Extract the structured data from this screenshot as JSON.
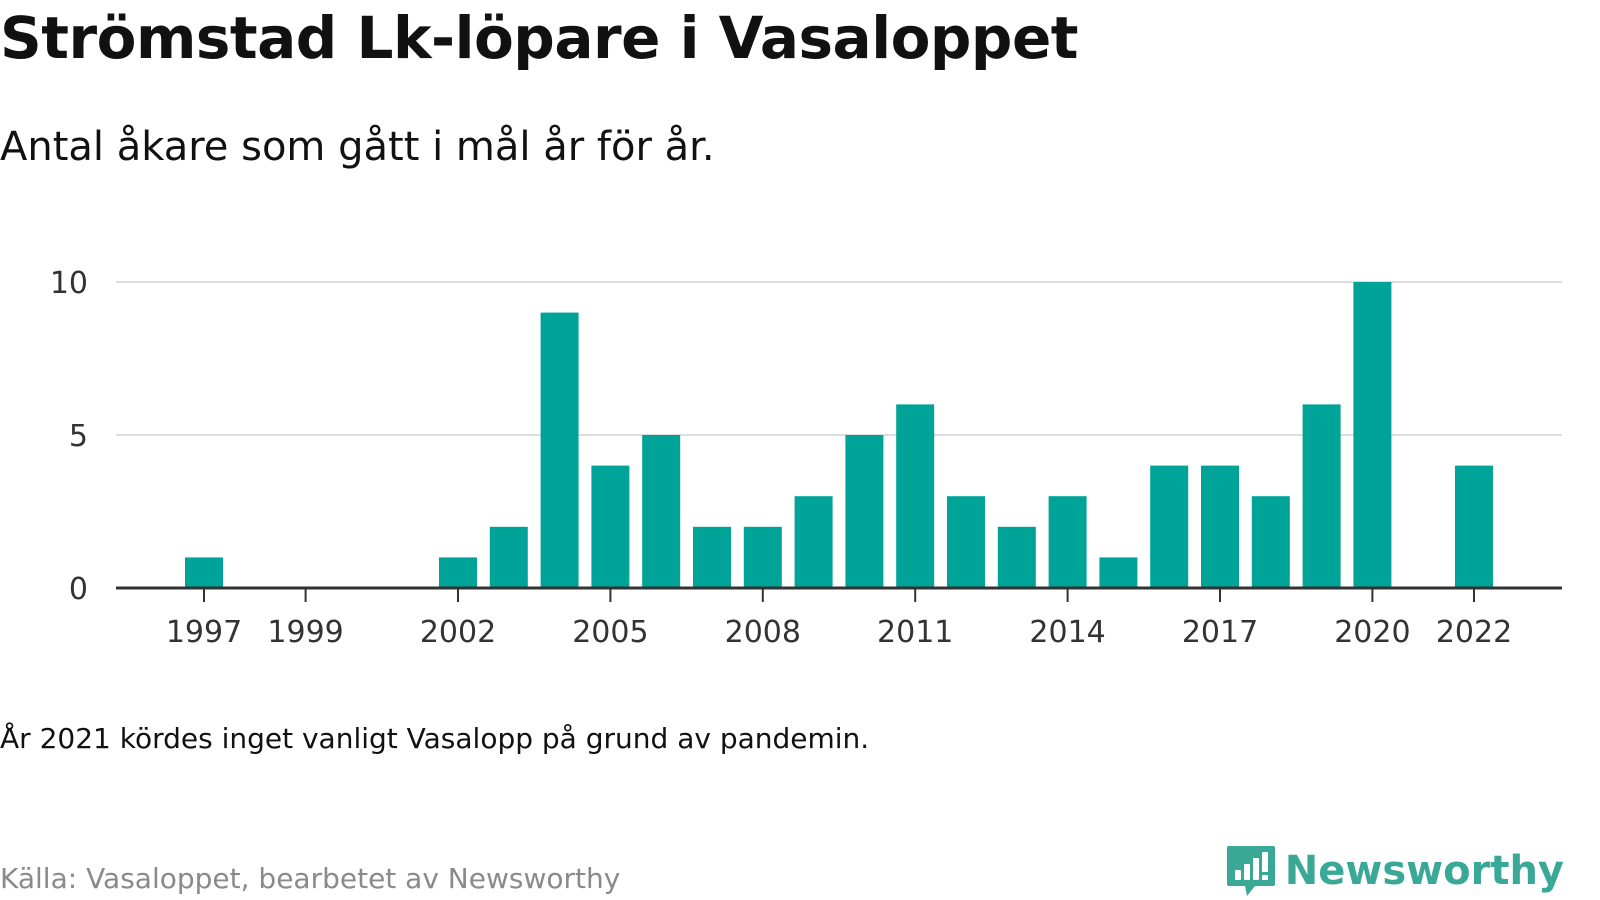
{
  "title": "Strömstad Lk-löpare i Vasaloppet",
  "subtitle": "Antal åkare som gått i mål år för år.",
  "note": "År 2021 kördes inget vanligt Vasalopp på grund av pandemin.",
  "source": "Källa: Vasaloppet, bearbetet av Newsworthy",
  "brand": {
    "name": "Newsworthy",
    "icon": "bar-chart-exclamation-icon",
    "color": "#3aa896"
  },
  "colors": {
    "bar": "#00a398",
    "grid": "#dddddd",
    "axis": "#333333",
    "text": "#111111",
    "muted": "#8a8a8a"
  },
  "chart_data": {
    "type": "bar",
    "title": "Strömstad Lk-löpare i Vasaloppet",
    "subtitle": "Antal åkare som gått i mål år för år.",
    "xlabel": "",
    "ylabel": "",
    "categories": [
      "1997",
      "1998",
      "1999",
      "2000",
      "2001",
      "2002",
      "2003",
      "2004",
      "2005",
      "2006",
      "2007",
      "2008",
      "2009",
      "2010",
      "2011",
      "2012",
      "2013",
      "2014",
      "2015",
      "2016",
      "2017",
      "2018",
      "2019",
      "2020",
      "2021",
      "2022"
    ],
    "values": [
      1,
      0,
      0,
      0,
      0,
      1,
      2,
      9,
      4,
      5,
      2,
      2,
      3,
      5,
      6,
      3,
      2,
      3,
      1,
      4,
      4,
      3,
      6,
      10,
      null,
      4
    ],
    "x_tick_labels": [
      "1997",
      "1999",
      "2002",
      "2005",
      "2008",
      "2011",
      "2014",
      "2017",
      "2020",
      "2022"
    ],
    "y_ticks": [
      0,
      5,
      10
    ],
    "ylim": [
      0,
      10
    ],
    "grid": true,
    "legend": "none"
  }
}
